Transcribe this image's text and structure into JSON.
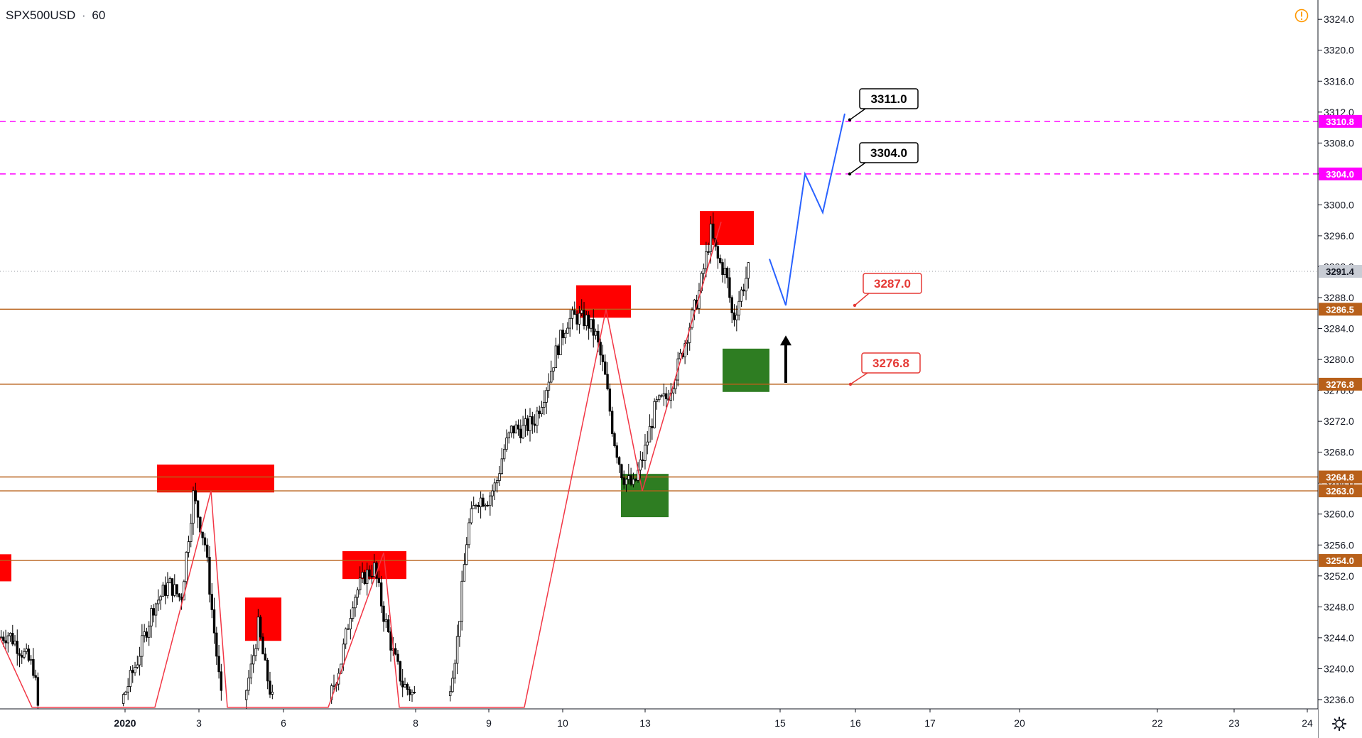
{
  "header": {
    "symbol": "SPX500USD",
    "interval": "60",
    "separator": "·"
  },
  "alert_icon_color": "#ff9800",
  "settings_icon": "gear-icon",
  "colors": {
    "axis_bg": "#ffffff",
    "grid": "#e0e3eb",
    "candle": "#000000",
    "zigzag": "#f23645",
    "projection": "#2962ff",
    "supply_zone": "#ff0000",
    "demand_zone": "#2e7d22",
    "level_orange": "#b8601a",
    "level_magenta": "#ff00ff",
    "last_price_tag": "#c8ccd4",
    "callout_red": "#e53935",
    "callout_black": "#000000"
  },
  "chart_data": {
    "type": "candlestick",
    "title": "",
    "xlabel": "",
    "ylabel": "",
    "ylim": [
      3234.8,
      3326.5
    ],
    "y_ticks": [
      3236,
      3240,
      3244,
      3248,
      3252,
      3256,
      3260,
      3264,
      3268,
      3272,
      3276,
      3280,
      3284,
      3288,
      3292,
      3296,
      3300,
      3304,
      3308,
      3312,
      3316,
      3320,
      3324
    ],
    "x_ticks": [
      {
        "label": "2020",
        "bold": true,
        "day": 2
      },
      {
        "label": "3",
        "day": 3
      },
      {
        "label": "6",
        "day": 6
      },
      {
        "label": "8",
        "day": 8
      },
      {
        "label": "9",
        "day": 9
      },
      {
        "label": "10",
        "day": 10
      },
      {
        "label": "13",
        "day": 13
      },
      {
        "label": "15",
        "day": 15
      },
      {
        "label": "16",
        "day": 16
      },
      {
        "label": "17",
        "day": 17
      },
      {
        "label": "20",
        "day": 20
      },
      {
        "label": "22",
        "day": 22
      },
      {
        "label": "23",
        "day": 23
      },
      {
        "label": "24",
        "day": 24
      }
    ],
    "horizontal_levels": [
      {
        "value": 3310.8,
        "label": "3310.8",
        "style": "dashed",
        "color": "magenta"
      },
      {
        "value": 3304.0,
        "label": "3304.0",
        "style": "dashed",
        "color": "magenta"
      },
      {
        "value": 3286.5,
        "label": "3286.5",
        "style": "solid",
        "color": "orange"
      },
      {
        "value": 3276.8,
        "label": "3276.8",
        "style": "solid",
        "color": "orange"
      },
      {
        "value": 3264.8,
        "label": "3264.8",
        "style": "solid",
        "color": "orange"
      },
      {
        "value": 3263.0,
        "label": "3263.0",
        "style": "solid",
        "color": "orange"
      },
      {
        "value": 3254.0,
        "label": "3254.0",
        "style": "solid",
        "color": "orange"
      }
    ],
    "last_price": {
      "value": 3291.4,
      "label": "3291.4"
    },
    "callouts": [
      {
        "label": "3311.0",
        "value": 3311.0,
        "color": "black"
      },
      {
        "label": "3304.0",
        "value": 3304.0,
        "color": "black"
      },
      {
        "label": "3287.0",
        "value": 3287.0,
        "color": "red"
      },
      {
        "label": "3276.8",
        "value": 3276.8,
        "color": "red"
      }
    ],
    "supply_zones": [
      {
        "day_from": 0.9,
        "day_to": 1.0,
        "low": 3251.3,
        "high": 3254.8
      },
      {
        "day_from": 2.4,
        "day_to": 3.9,
        "low": 3262.8,
        "high": 3266.4
      },
      {
        "day_from": 4.0,
        "day_to": 5.0,
        "low": 3243.6,
        "high": 3249.2
      },
      {
        "day_from": 6.8,
        "day_to": 7.55,
        "low": 3251.6,
        "high": 3255.2
      },
      {
        "day_from": 11.15,
        "day_to": 11.9,
        "low": 3285.4,
        "high": 3289.6
      },
      {
        "day_from": 13.8,
        "day_to": 14.5,
        "low": 3294.8,
        "high": 3299.2
      }
    ],
    "demand_zones": [
      {
        "day_from": 12.75,
        "day_to": 13.35,
        "low": 3259.6,
        "high": 3265.2
      },
      {
        "day_from": 14.05,
        "day_to": 14.65,
        "low": 3275.8,
        "high": 3281.4
      }
    ],
    "zigzag": [
      {
        "day": 1.0,
        "price": 3244.0
      },
      {
        "day": 1.3,
        "price": 3235.0
      },
      {
        "day": 2.2,
        "price": 3235.0
      },
      {
        "day": 3.0,
        "price": 3263.0
      },
      {
        "day": 3.3,
        "price": 3235.0
      },
      {
        "day": 6.3,
        "price": 3235.0
      },
      {
        "day": 7.15,
        "price": 3255.0
      },
      {
        "day": 7.4,
        "price": 3235.0
      },
      {
        "day": 9.4,
        "price": 3235.0
      },
      {
        "day": 11.45,
        "price": 3286.5
      },
      {
        "day": 12.9,
        "price": 3263.0
      },
      {
        "day": 14.0,
        "price": 3297.8
      }
    ],
    "projection": [
      {
        "day": 14.7,
        "price": 3293.0
      },
      {
        "day": 15.1,
        "price": 3287.0
      },
      {
        "day": 15.55,
        "price": 3304.0
      },
      {
        "day": 15.9,
        "price": 3299.0
      },
      {
        "day": 16.35,
        "price": 3311.8
      }
    ],
    "arrow": {
      "day": 14.95,
      "price_from": 3279.0,
      "price_to": 3282.0,
      "direction": "up"
    },
    "candles_note": "hourly OHLC approximated from the visible price path",
    "path_anchors": [
      [
        0.0,
        3244.0
      ],
      [
        0.25,
        3244.5
      ],
      [
        0.55,
        3242.5
      ],
      [
        0.9,
        3240.0
      ],
      [
        1.0,
        3235.0
      ],
      [
        2.1,
        3235.5
      ],
      [
        2.3,
        3241.0
      ],
      [
        2.5,
        3248.0
      ],
      [
        2.7,
        3251.0
      ],
      [
        2.85,
        3249.0
      ],
      [
        3.0,
        3262.5
      ],
      [
        3.15,
        3256.0
      ],
      [
        3.35,
        3236.0
      ],
      [
        4.0,
        3236.0
      ],
      [
        4.2,
        3240.0
      ],
      [
        4.4,
        3245.5
      ],
      [
        4.6,
        3240.0
      ],
      [
        4.8,
        3236.0
      ],
      [
        6.25,
        3236.0
      ],
      [
        6.5,
        3241.0
      ],
      [
        6.75,
        3249.0
      ],
      [
        7.0,
        3252.0
      ],
      [
        7.2,
        3253.0
      ],
      [
        7.4,
        3247.0
      ],
      [
        7.6,
        3242.0
      ],
      [
        7.8,
        3238.0
      ],
      [
        8.05,
        3236.5
      ],
      [
        8.6,
        3236.5
      ],
      [
        8.8,
        3243.0
      ],
      [
        9.05,
        3258.0
      ],
      [
        9.25,
        3262.0
      ],
      [
        9.5,
        3262.0
      ],
      [
        9.7,
        3264.0
      ],
      [
        9.85,
        3268.0
      ],
      [
        10.05,
        3271.0
      ],
      [
        10.3,
        3271.0
      ],
      [
        10.55,
        3272.0
      ],
      [
        10.8,
        3276.0
      ],
      [
        11.05,
        3281.0
      ],
      [
        11.3,
        3285.0
      ],
      [
        11.5,
        3285.5
      ],
      [
        11.75,
        3285.0
      ],
      [
        11.95,
        3283.0
      ],
      [
        12.15,
        3278.0
      ],
      [
        12.35,
        3270.0
      ],
      [
        12.55,
        3265.0
      ],
      [
        12.8,
        3263.5
      ],
      [
        13.05,
        3268.0
      ],
      [
        13.3,
        3274.0
      ],
      [
        13.55,
        3275.0
      ],
      [
        13.8,
        3279.0
      ],
      [
        14.05,
        3284.0
      ],
      [
        14.3,
        3289.0
      ],
      [
        14.55,
        3296.5
      ],
      [
        14.7,
        3293.0
      ],
      [
        14.9,
        3291.0
      ],
      [
        15.05,
        3285.0
      ],
      [
        15.2,
        3288.0
      ],
      [
        15.4,
        3291.5
      ]
    ]
  }
}
